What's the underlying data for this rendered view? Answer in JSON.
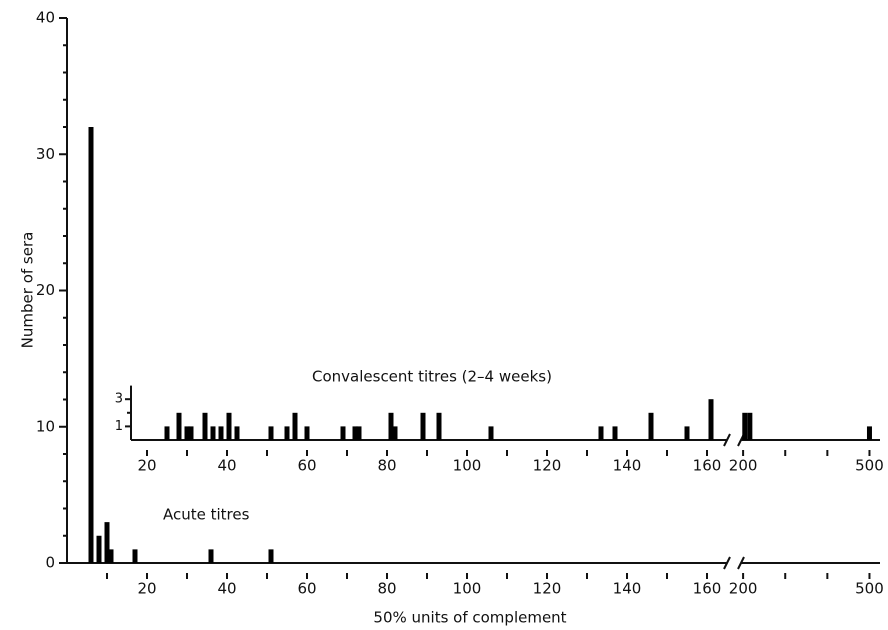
{
  "chart_data": [
    {
      "type": "bar",
      "annotation": "Acute titres",
      "xlabel": "50% units of complement",
      "ylabel": "Number of sera",
      "color": "#000000",
      "x": [
        6,
        8,
        10,
        11,
        17,
        36,
        51
      ],
      "values": [
        32,
        2,
        3,
        1,
        1,
        1,
        1
      ],
      "xlim": [
        0,
        525
      ],
      "x_break": [
        165,
        195
      ],
      "xticks": [
        20,
        40,
        60,
        80,
        100,
        120,
        140,
        160,
        200,
        500
      ],
      "xminorticks": [
        10,
        30,
        50,
        70,
        90,
        110,
        130,
        150,
        300,
        400
      ],
      "ylim": [
        0,
        40
      ],
      "yticks": [
        0,
        10,
        20,
        30,
        40
      ],
      "yminorticks": [
        2,
        4,
        6,
        8,
        12,
        14,
        16,
        18,
        22,
        24,
        26,
        28,
        32,
        34,
        36,
        38
      ]
    },
    {
      "type": "bar",
      "title": "Convalescent titres (2–4 weeks)",
      "color": "#000000",
      "x": [
        25,
        28,
        30,
        31,
        34.5,
        36.5,
        38.5,
        40.5,
        42.5,
        51,
        55,
        57,
        60,
        69,
        72,
        73,
        81,
        82,
        89,
        93,
        106,
        133.5,
        137,
        146,
        155,
        161,
        204,
        216,
        500
      ],
      "values": [
        1,
        2,
        1,
        1,
        2,
        1,
        1,
        2,
        1,
        1,
        1,
        2,
        1,
        1,
        1,
        1,
        2,
        1,
        2,
        2,
        1,
        1,
        1,
        2,
        1,
        3,
        2,
        2,
        1
      ],
      "xlim": [
        16,
        525
      ],
      "x_break": [
        165,
        195
      ],
      "xticks": [
        20,
        40,
        60,
        80,
        100,
        120,
        140,
        160,
        200,
        500
      ],
      "xminorticks": [
        30,
        50,
        70,
        90,
        110,
        130,
        150,
        300,
        400
      ],
      "ylim": [
        0,
        4
      ],
      "yticks": [
        1,
        3
      ],
      "yminorticks": [
        2
      ]
    }
  ]
}
